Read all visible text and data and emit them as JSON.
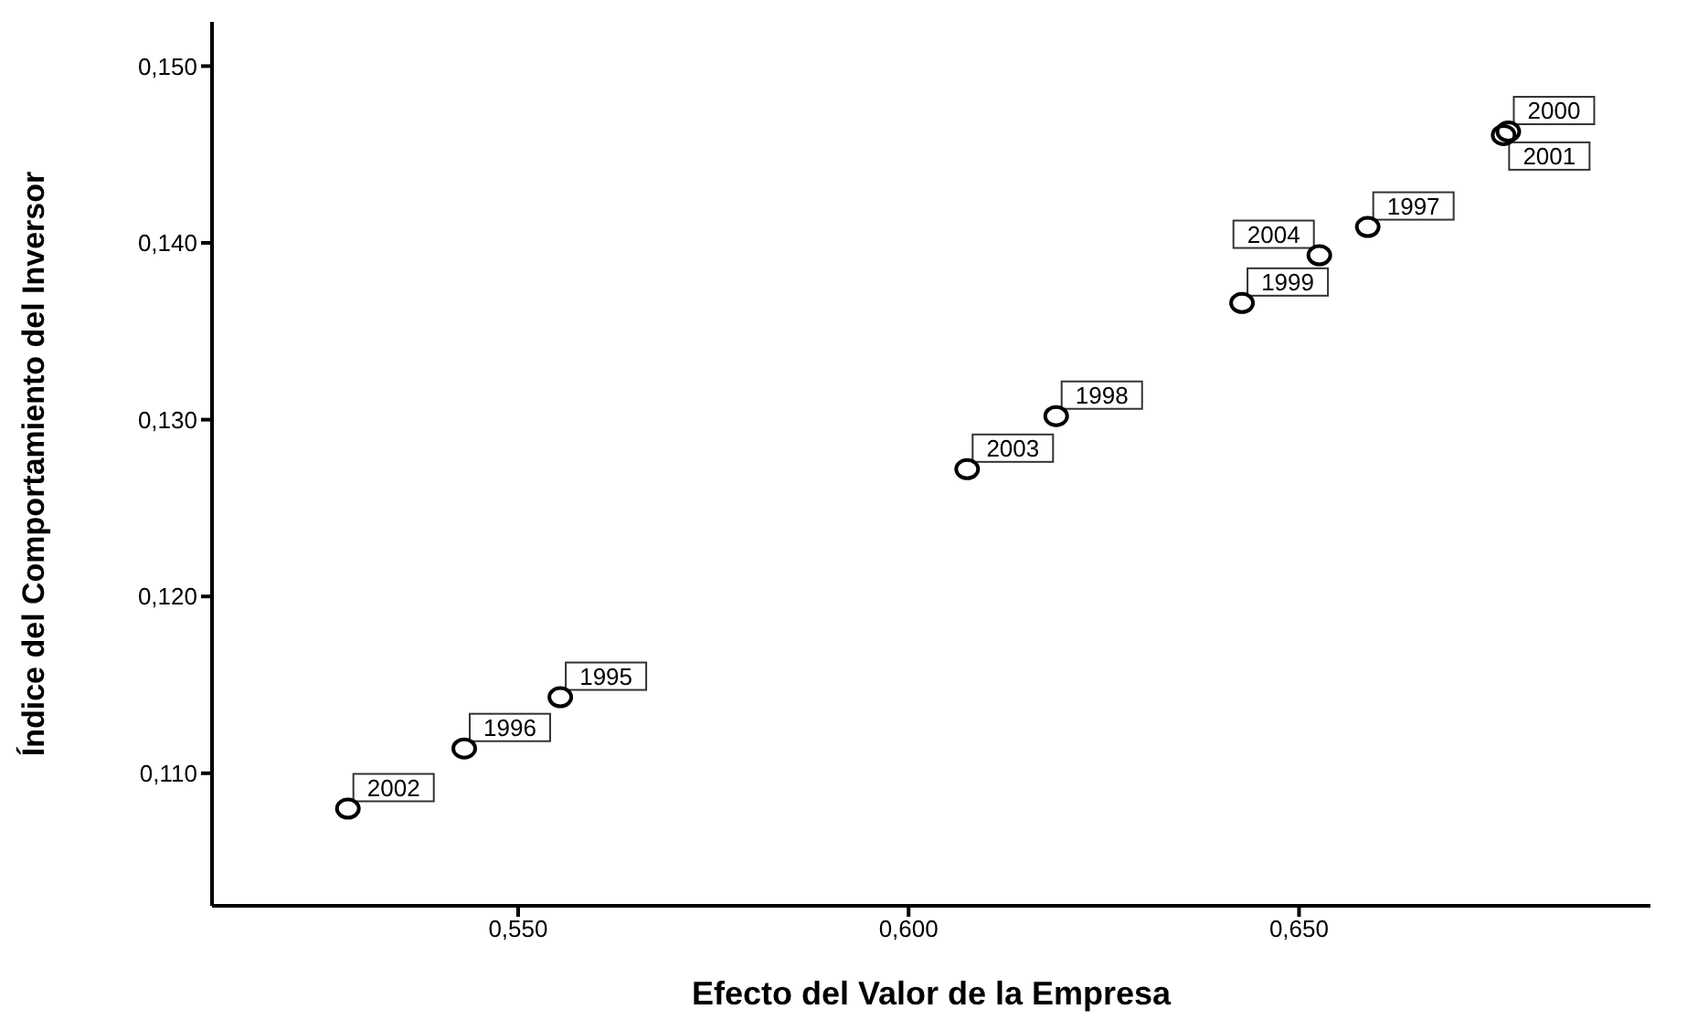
{
  "chart_data": {
    "type": "scatter",
    "xlabel": "Efecto del Valor de la Empresa",
    "ylabel": "Índice del Comportamiento del Inversor",
    "x": [
      0.5282,
      0.5431,
      0.5554,
      0.6075,
      0.6189,
      0.6427,
      0.6526,
      0.6588,
      0.6768,
      0.6762
    ],
    "series": [
      {
        "color": "#000000",
        "values": [
          0.108,
          0.1114,
          0.1143,
          0.1272,
          0.1302,
          0.1366,
          0.1393,
          0.1409,
          0.1463,
          0.1461
        ]
      }
    ],
    "marker": "circle",
    "grid": false,
    "legend": false,
    "xlim": [
      0.5108,
      0.695
    ],
    "xticks": [
      {
        "value": 0.55,
        "label": "0,550"
      },
      {
        "value": 0.6,
        "label": "0,600"
      },
      {
        "value": 0.65,
        "label": "0,650"
      }
    ],
    "ylim": [
      0.1025,
      0.1525
    ],
    "yticks": [
      {
        "value": 0.11,
        "label": "0,110"
      },
      {
        "value": 0.12,
        "label": "0,120"
      },
      {
        "value": 0.13,
        "label": "0,130"
      },
      {
        "value": 0.14,
        "label": "0,140"
      },
      {
        "value": 0.15,
        "label": "0,150"
      }
    ],
    "annotations": [
      {
        "text": "2002",
        "x": 0.5282,
        "y": 0.108
      },
      {
        "text": "1996",
        "x": 0.5431,
        "y": 0.1114
      },
      {
        "text": "1995",
        "x": 0.5554,
        "y": 0.1143
      },
      {
        "text": "2003",
        "x": 0.6075,
        "y": 0.1272
      },
      {
        "text": "1998",
        "x": 0.6189,
        "y": 0.1302
      },
      {
        "text": "1999",
        "x": 0.6427,
        "y": 0.1366
      },
      {
        "text": "1997",
        "x": 0.6588,
        "y": 0.1409
      },
      {
        "text": "2004",
        "x": 0.6526,
        "y": 0.1393
      },
      {
        "text": "2000",
        "x": 0.6768,
        "y": 0.1463
      },
      {
        "text": "2001",
        "x": 0.6762,
        "y": 0.1461
      }
    ]
  }
}
